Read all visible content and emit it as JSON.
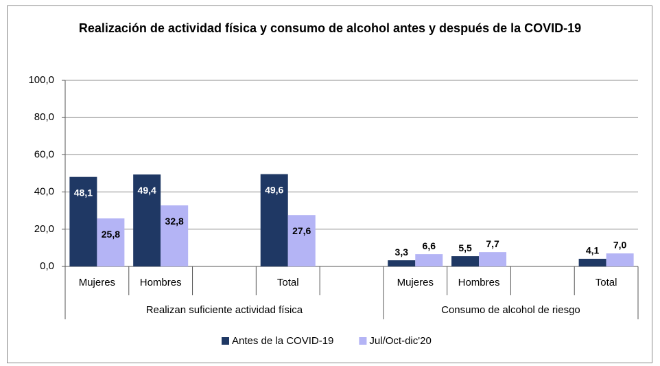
{
  "chart_data": {
    "type": "bar",
    "title": "Realización de actividad física y consumo de alcohol antes y después de la COVID-19",
    "groups": [
      {
        "name": "Realizan suficiente actividad física",
        "categories": [
          "Mujeres",
          "Hombres",
          null,
          "Total",
          null
        ]
      },
      {
        "name": "Consumo de alcohol de riesgo",
        "categories": [
          "Mujeres",
          "Hombres",
          null,
          "Total"
        ]
      }
    ],
    "series": [
      {
        "name": "Antes de la COVID-19",
        "color": "#1f3864",
        "values": [
          48.1,
          49.4,
          null,
          49.6,
          null,
          3.3,
          5.5,
          null,
          4.1
        ],
        "value_labels": [
          "48,1",
          "49,4",
          null,
          "49,6",
          null,
          "3,3",
          "5,5",
          null,
          "4,1"
        ]
      },
      {
        "name": "Jul/Oct-dic'20",
        "color": "#b4b4f5",
        "values": [
          25.8,
          32.8,
          null,
          27.6,
          null,
          6.6,
          7.7,
          null,
          7.0
        ],
        "value_labels": [
          "25,8",
          "32,8",
          null,
          "27,6",
          null,
          "6,6",
          "7,7",
          null,
          "7,0"
        ]
      }
    ],
    "ylim": [
      0,
      100
    ],
    "yticks": [
      {
        "value": 0,
        "label": "0,0"
      },
      {
        "value": 20,
        "label": "20,0"
      },
      {
        "value": 40,
        "label": "40,0"
      },
      {
        "value": 60,
        "label": "60,0"
      },
      {
        "value": 80,
        "label": "80,0"
      },
      {
        "value": 100,
        "label": "100,0"
      }
    ],
    "grid": true,
    "legend": "bottom"
  }
}
